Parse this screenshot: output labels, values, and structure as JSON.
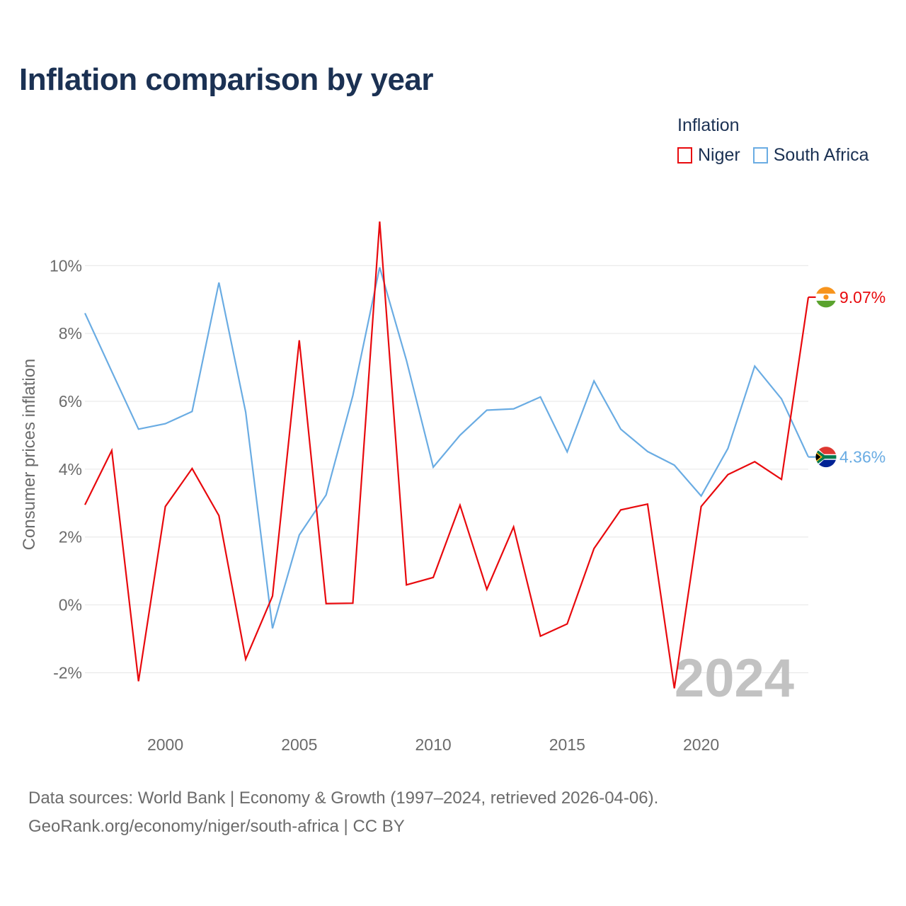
{
  "title": "Inflation comparison by year",
  "legend": {
    "title": "Inflation",
    "items": [
      {
        "label": "Niger",
        "color": "#e8090d"
      },
      {
        "label": "South Africa",
        "color": "#6aace3"
      }
    ]
  },
  "source": {
    "line1": "Data sources: World Bank | Economy & Growth (1997–2024, retrieved 2026-04-06).",
    "line2": "GeoRank.org/economy/niger/south-africa | CC BY"
  },
  "chart_data": {
    "type": "line",
    "title": "Inflation comparison by year",
    "xlabel": "",
    "ylabel": "Consumer prices inflation",
    "xlim": [
      1997,
      2024
    ],
    "ylim": [
      -3.2,
      12
    ],
    "yticks": [
      -2,
      0,
      2,
      4,
      6,
      8,
      10
    ],
    "ytick_labels": [
      "-2%",
      "0%",
      "2%",
      "4%",
      "6%",
      "8%",
      "10%"
    ],
    "xticks": [
      2000,
      2005,
      2010,
      2015,
      2020
    ],
    "xtick_labels": [
      "2000",
      "2005",
      "2010",
      "2015",
      "2020"
    ],
    "x": [
      1997,
      1998,
      1999,
      2000,
      2001,
      2002,
      2003,
      2004,
      2005,
      2006,
      2007,
      2008,
      2009,
      2010,
      2011,
      2012,
      2013,
      2014,
      2015,
      2016,
      2017,
      2018,
      2019,
      2020,
      2021,
      2022,
      2023,
      2024
    ],
    "series": [
      {
        "name": "Niger",
        "color": "#e8090d",
        "end_label": "9.07%",
        "values": [
          2.95,
          4.55,
          -2.25,
          2.9,
          4.02,
          2.63,
          -1.6,
          0.26,
          7.8,
          0.04,
          0.05,
          11.3,
          0.59,
          0.81,
          2.94,
          0.46,
          2.3,
          -0.92,
          -0.56,
          1.66,
          2.8,
          2.97,
          -2.46,
          2.9,
          3.84,
          4.22,
          3.7,
          9.07
        ]
      },
      {
        "name": "South Africa",
        "color": "#6aace3",
        "end_label": "4.36%",
        "values": [
          8.6,
          6.88,
          5.18,
          5.34,
          5.7,
          9.5,
          5.68,
          -0.69,
          2.06,
          3.24,
          6.17,
          9.95,
          7.21,
          4.06,
          5.0,
          5.74,
          5.78,
          6.13,
          4.51,
          6.6,
          5.18,
          4.52,
          4.12,
          3.21,
          4.61,
          7.04,
          6.07,
          4.36
        ]
      }
    ],
    "annotation": "2024",
    "grid": true,
    "legend_position": "top-right"
  }
}
